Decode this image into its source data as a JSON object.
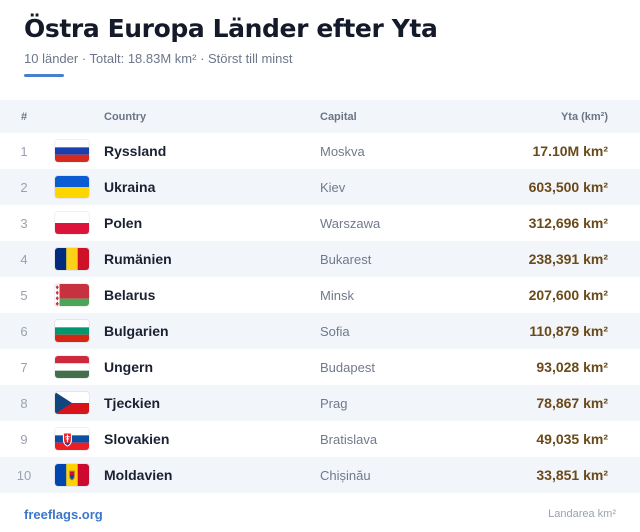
{
  "header": {
    "title": "Östra Europa Länder efter Yta",
    "subtitle": "10 länder · Totalt: 18.83M km² · Störst till minst"
  },
  "table": {
    "columns": {
      "num": "#",
      "country": "Country",
      "capital": "Capital",
      "area": "Yta (km²)"
    },
    "rows": [
      {
        "num": "1",
        "flag": "russia-flag-icon",
        "country": "Ryssland",
        "capital": "Moskva",
        "area": "17.10M km²"
      },
      {
        "num": "2",
        "flag": "ukraine-flag-icon",
        "country": "Ukraina",
        "capital": "Kiev",
        "area": "603,500 km²"
      },
      {
        "num": "3",
        "flag": "poland-flag-icon",
        "country": "Polen",
        "capital": "Warszawa",
        "area": "312,696 km²"
      },
      {
        "num": "4",
        "flag": "romania-flag-icon",
        "country": "Rumänien",
        "capital": "Bukarest",
        "area": "238,391 km²"
      },
      {
        "num": "5",
        "flag": "belarus-flag-icon",
        "country": "Belarus",
        "capital": "Minsk",
        "area": "207,600 km²"
      },
      {
        "num": "6",
        "flag": "bulgaria-flag-icon",
        "country": "Bulgarien",
        "capital": "Sofia",
        "area": "110,879 km²"
      },
      {
        "num": "7",
        "flag": "hungary-flag-icon",
        "country": "Ungern",
        "capital": "Budapest",
        "area": "93,028 km²"
      },
      {
        "num": "8",
        "flag": "czechia-flag-icon",
        "country": "Tjeckien",
        "capital": "Prag",
        "area": "78,867 km²"
      },
      {
        "num": "9",
        "flag": "slovakia-flag-icon",
        "country": "Slovakien",
        "capital": "Bratislava",
        "area": "49,035 km²"
      },
      {
        "num": "10",
        "flag": "moldova-flag-icon",
        "country": "Moldavien",
        "capital": "Chișinău",
        "area": "33,851 km²"
      }
    ]
  },
  "footer": {
    "link": "freeflags.org",
    "note": "Landarea km²"
  },
  "colors": {
    "accent": "#4a7fd0",
    "area_text": "#6b4a1a",
    "row_alt": "#f2f5fa"
  }
}
